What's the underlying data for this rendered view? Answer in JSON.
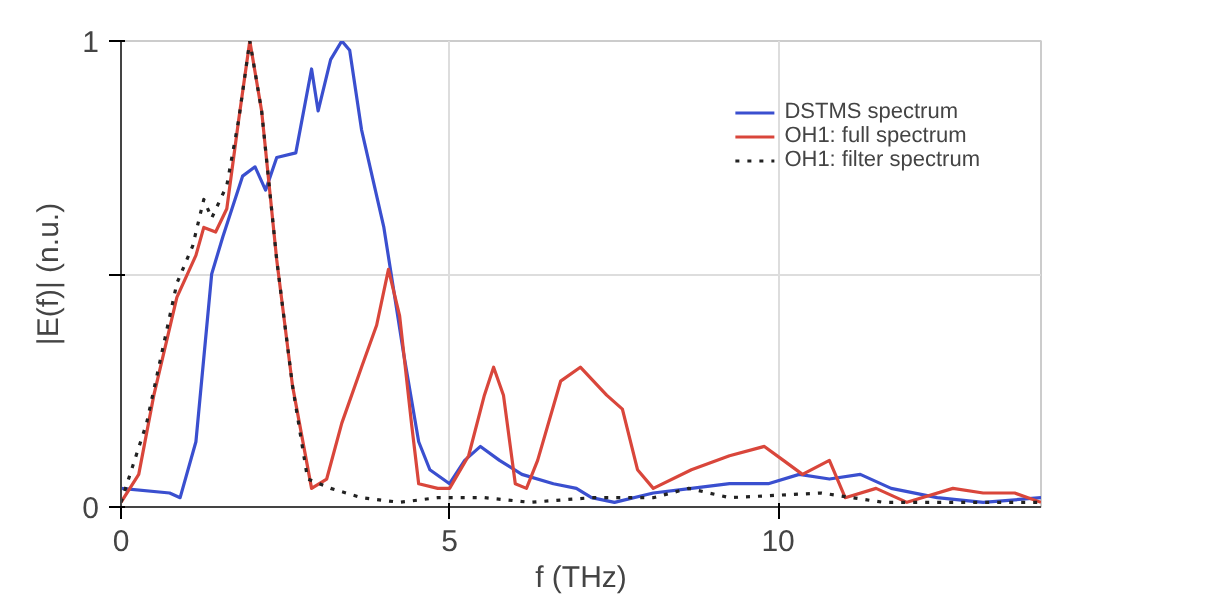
{
  "chart_data": {
    "type": "line",
    "xlabel": "f (THz)",
    "ylabel": "|E(f)| (n.u.)",
    "xlim": [
      0,
      14
    ],
    "ylim": [
      0,
      1
    ],
    "xticks": [
      0,
      5,
      10
    ],
    "yticks": [
      0,
      {
        "value": 0.5,
        "label": null
      },
      1
    ],
    "grid": true,
    "legend": "top right",
    "series": [
      {
        "name": "DSTMS spectrum",
        "color": "#3a4fcf",
        "line_style": "solid",
        "x": [
          0,
          0.74,
          0.9,
          1.14,
          1.38,
          1.55,
          1.85,
          2.04,
          2.2,
          2.37,
          2.66,
          2.9,
          3.0,
          3.19,
          3.36,
          3.48,
          3.66,
          4.0,
          4.3,
          4.53,
          4.7,
          5.0,
          5.23,
          5.47,
          5.76,
          6.1,
          6.58,
          6.93,
          7.16,
          7.51,
          8.1,
          8.68,
          9.26,
          9.85,
          10.32,
          10.78,
          11.25,
          11.72,
          12.42,
          13.12,
          14.0
        ],
        "values": [
          0.04,
          0.03,
          0.02,
          0.14,
          0.5,
          0.58,
          0.71,
          0.73,
          0.68,
          0.75,
          0.76,
          0.94,
          0.85,
          0.96,
          1.0,
          0.98,
          0.81,
          0.6,
          0.33,
          0.14,
          0.08,
          0.05,
          0.1,
          0.13,
          0.1,
          0.07,
          0.05,
          0.04,
          0.02,
          0.01,
          0.03,
          0.04,
          0.05,
          0.05,
          0.07,
          0.06,
          0.07,
          0.04,
          0.02,
          0.01,
          0.02
        ]
      },
      {
        "name": "OH1: full spectrum",
        "color": "#d9463b",
        "line_style": "solid",
        "x": [
          0,
          0.27,
          0.5,
          0.85,
          1.14,
          1.26,
          1.44,
          1.61,
          1.79,
          1.96,
          2.14,
          2.37,
          2.61,
          2.9,
          3.13,
          3.36,
          3.66,
          3.89,
          4.07,
          4.24,
          4.42,
          4.53,
          4.82,
          5.0,
          5.29,
          5.53,
          5.67,
          5.82,
          6.0,
          6.17,
          6.34,
          6.69,
          6.99,
          7.39,
          7.63,
          7.86,
          8.1,
          8.68,
          9.26,
          9.79,
          10.08,
          10.37,
          10.78,
          11.02,
          11.49,
          11.96,
          12.66,
          13.12,
          13.6,
          14.0
        ],
        "values": [
          0.01,
          0.07,
          0.24,
          0.45,
          0.54,
          0.6,
          0.59,
          0.64,
          0.83,
          1.0,
          0.85,
          0.53,
          0.26,
          0.04,
          0.06,
          0.18,
          0.3,
          0.39,
          0.51,
          0.41,
          0.18,
          0.05,
          0.04,
          0.04,
          0.11,
          0.24,
          0.3,
          0.24,
          0.05,
          0.04,
          0.1,
          0.27,
          0.3,
          0.24,
          0.21,
          0.08,
          0.04,
          0.08,
          0.11,
          0.13,
          0.1,
          0.07,
          0.1,
          0.02,
          0.04,
          0.01,
          0.04,
          0.03,
          0.03,
          0.01
        ]
      },
      {
        "name": "OH1: filter spectrum",
        "color": "#222222",
        "line_style": "dotted",
        "x": [
          0,
          0.39,
          0.85,
          1.09,
          1.26,
          1.38,
          1.61,
          1.79,
          1.96,
          2.14,
          2.37,
          2.61,
          2.84,
          3.19,
          3.66,
          4.24,
          4.82,
          5.53,
          6.23,
          7.16,
          8.1,
          8.64,
          9.26,
          10.66,
          11.6,
          12.8,
          14.0
        ],
        "values": [
          0.01,
          0.18,
          0.48,
          0.56,
          0.66,
          0.62,
          0.69,
          0.83,
          1.0,
          0.85,
          0.53,
          0.26,
          0.06,
          0.04,
          0.02,
          0.01,
          0.02,
          0.02,
          0.01,
          0.02,
          0.02,
          0.04,
          0.02,
          0.03,
          0.01,
          0.01,
          0.01
        ]
      }
    ]
  }
}
